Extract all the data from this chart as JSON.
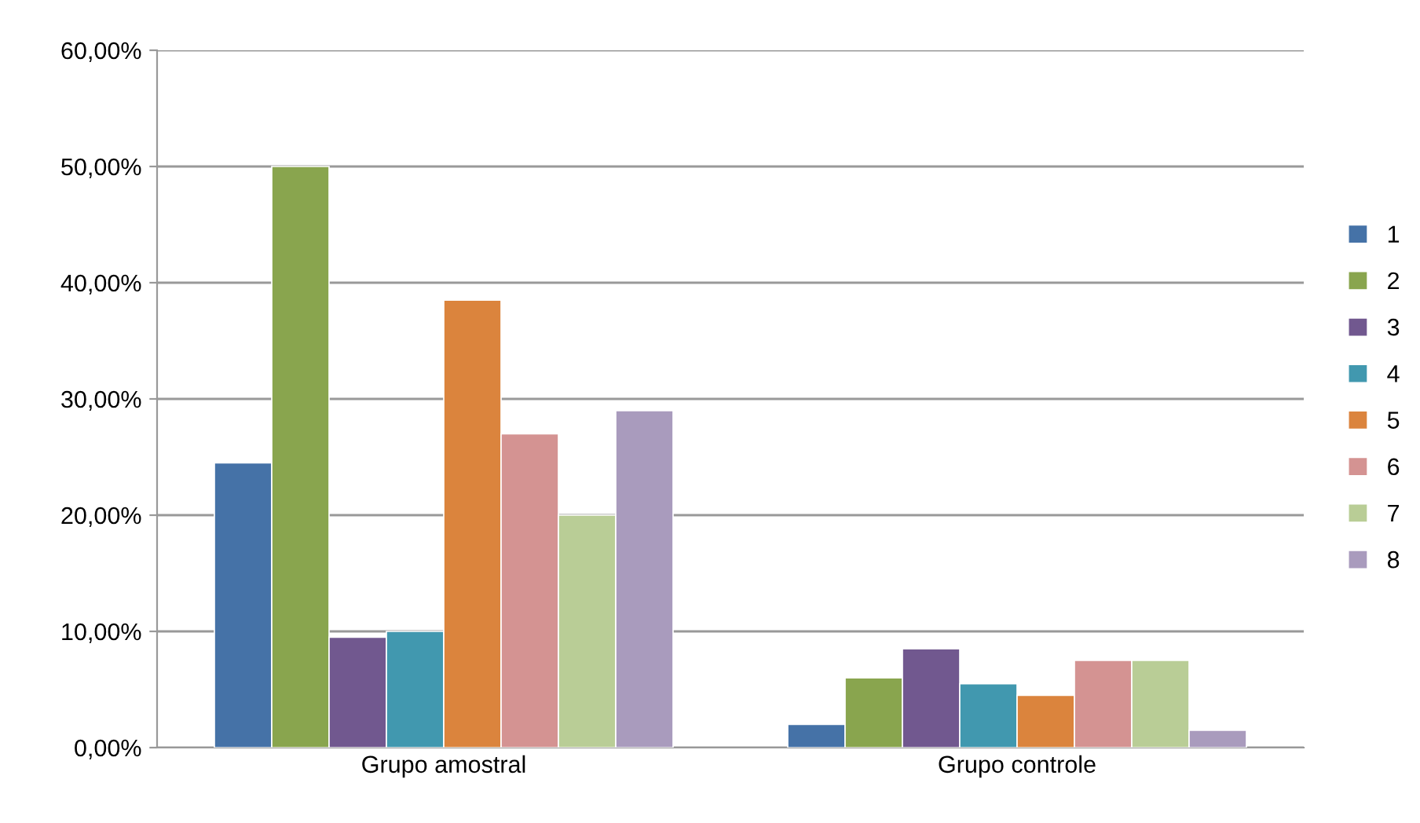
{
  "chart_data": {
    "type": "bar",
    "categories": [
      "Grupo amostral",
      "Grupo controle"
    ],
    "series": [
      {
        "name": "1",
        "color": "#4572a7",
        "values": [
          24.5,
          2.0
        ]
      },
      {
        "name": "2",
        "color": "#89a54e",
        "values": [
          50.0,
          6.0
        ]
      },
      {
        "name": "3",
        "color": "#71588f",
        "values": [
          9.5,
          8.5
        ]
      },
      {
        "name": "4",
        "color": "#4198af",
        "values": [
          10.0,
          5.5
        ]
      },
      {
        "name": "5",
        "color": "#db843d",
        "values": [
          38.5,
          4.5
        ]
      },
      {
        "name": "6",
        "color": "#d49392",
        "values": [
          27.0,
          7.5
        ]
      },
      {
        "name": "7",
        "color": "#b9cd96",
        "values": [
          20.0,
          7.5
        ]
      },
      {
        "name": "8",
        "color": "#a99bbd",
        "values": [
          29.0,
          1.5
        ]
      }
    ],
    "ylim": [
      0,
      60
    ],
    "yticks": [
      {
        "value": 0,
        "label": "0,00%"
      },
      {
        "value": 10,
        "label": "10,00%"
      },
      {
        "value": 20,
        "label": "20,00%"
      },
      {
        "value": 30,
        "label": "30,00%"
      },
      {
        "value": 40,
        "label": "40,00%"
      },
      {
        "value": 50,
        "label": "50,00%"
      },
      {
        "value": 60,
        "label": "60,00%"
      }
    ],
    "grid": "y",
    "legend": "right"
  }
}
